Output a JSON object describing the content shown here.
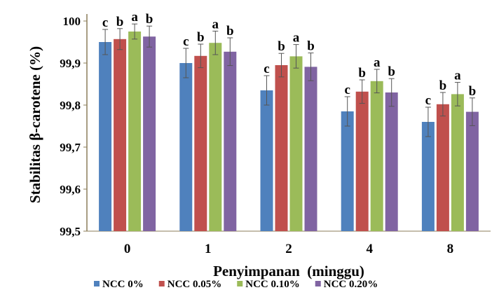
{
  "chart_data": {
    "type": "bar",
    "title": "",
    "xlabel": "Penyimpanan  (minggu)",
    "ylabel": "Stabilitas β-carotene (%)",
    "categories": [
      "0",
      "1",
      "2",
      "4",
      "8"
    ],
    "ylim": [
      99.5,
      100
    ],
    "yticks": [
      "99,5",
      "99,6",
      "99,7",
      "99,8",
      "99,9",
      "100"
    ],
    "grid": false,
    "legend_position": "bottom",
    "series": [
      {
        "name": "NCC 0%",
        "color": "#4f81bd",
        "values": [
          99.95,
          99.9,
          99.835,
          99.785,
          99.76
        ],
        "errors": [
          0.03,
          0.035,
          0.035,
          0.035,
          0.035
        ],
        "labels": [
          "c",
          "c",
          "c",
          "c",
          "c"
        ]
      },
      {
        "name": "NCC 0.05%",
        "color": "#c0504d",
        "values": [
          99.957,
          99.917,
          99.895,
          99.832,
          99.802
        ],
        "errors": [
          0.025,
          0.028,
          0.028,
          0.028,
          0.028
        ],
        "labels": [
          "b",
          "b",
          "b",
          "b",
          "b"
        ]
      },
      {
        "name": "NCC 0.10%",
        "color": "#9bbb59",
        "values": [
          99.975,
          99.948,
          99.916,
          99.857,
          99.826
        ],
        "errors": [
          0.018,
          0.028,
          0.028,
          0.028,
          0.028
        ],
        "labels": [
          "a",
          "a",
          "a",
          "a",
          "a"
        ]
      },
      {
        "name": "NCC 0.20%",
        "color": "#8064a2",
        "values": [
          99.963,
          99.927,
          99.891,
          99.83,
          99.784
        ],
        "errors": [
          0.025,
          0.033,
          0.033,
          0.033,
          0.033
        ],
        "labels": [
          "b",
          "b",
          "b",
          "b",
          "b"
        ]
      }
    ]
  }
}
